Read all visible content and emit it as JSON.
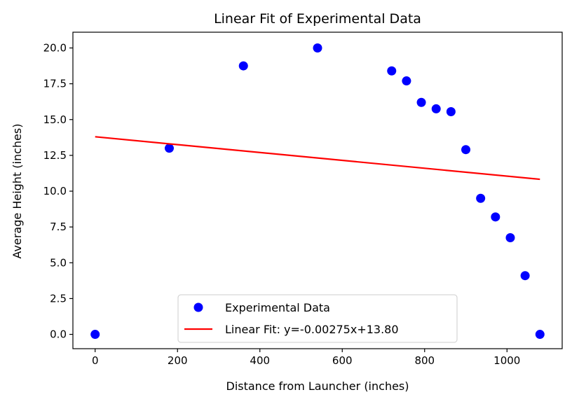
{
  "chart_data": {
    "type": "scatter",
    "title": "Linear Fit of Experimental Data",
    "xlabel": "Distance from Launcher (inches)",
    "ylabel": "Average Height (inches)",
    "xlim": [
      -54,
      1134
    ],
    "ylim": [
      -1.0,
      21.1
    ],
    "xticks": [
      0,
      200,
      400,
      600,
      800,
      1000
    ],
    "xtick_labels": [
      "0",
      "200",
      "400",
      "600",
      "800",
      "1000"
    ],
    "yticks": [
      0.0,
      2.5,
      5.0,
      7.5,
      10.0,
      12.5,
      15.0,
      17.5,
      20.0
    ],
    "ytick_labels": [
      "0.0",
      "2.5",
      "5.0",
      "7.5",
      "10.0",
      "12.5",
      "15.0",
      "17.5",
      "20.0"
    ],
    "grid": false,
    "legend_position": "lower center",
    "series": [
      {
        "name": "Experimental Data",
        "kind": "scatter",
        "color": "#0000ff",
        "x": [
          0,
          180,
          360,
          540,
          720,
          756,
          792,
          828,
          864,
          900,
          936,
          972,
          1008,
          1044,
          1080
        ],
        "y": [
          0.0,
          13.0,
          18.75,
          20.0,
          18.4,
          17.7,
          16.2,
          15.75,
          15.55,
          12.9,
          9.5,
          8.2,
          6.75,
          4.1,
          0.0
        ]
      },
      {
        "name": "Linear Fit: y=-0.00275x+13.80",
        "kind": "line",
        "color": "#ff0000",
        "x": [
          0,
          1080
        ],
        "y": [
          13.8,
          10.83
        ]
      }
    ]
  }
}
